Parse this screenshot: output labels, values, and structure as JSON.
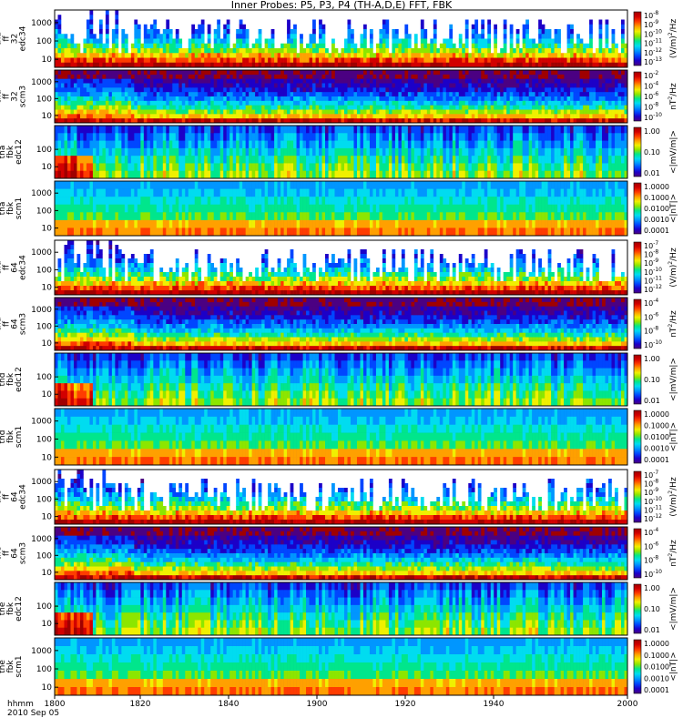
{
  "chart_data": {
    "type": "heatmap",
    "title": "Inner Probes: P5, P3, P4 (TH-A,D,E) FFT, FBK",
    "x_tick_labels": [
      "1800",
      "1820",
      "1840",
      "1900",
      "1920",
      "1940",
      "2000"
    ],
    "x_label_line1": "hhmm",
    "x_label_line2": "2010 Sep 05",
    "panels": [
      {
        "ylabel": [
          "tha",
          "ff",
          "32",
          "edc34"
        ],
        "yticks": [
          "1000",
          "100",
          "10"
        ],
        "cb_ticks": [
          "10^-8",
          "10^-9",
          "10^-10",
          "10^-11",
          "10^-12",
          "10^-13"
        ],
        "cb_label": "(V/m)^2/Hz",
        "product": "edc"
      },
      {
        "ylabel": [
          "tha",
          "ff",
          "32",
          "scm3"
        ],
        "yticks": [
          "1000",
          "100",
          "10"
        ],
        "cb_ticks": [
          "10^-2",
          "10^-4",
          "10^-6",
          "10^-8",
          "10^-10"
        ],
        "cb_label": "nT^2/Hz",
        "product": "scm"
      },
      {
        "ylabel": [
          "tha",
          "fbk",
          "edc12"
        ],
        "yticks": [
          "100",
          "10"
        ],
        "cb_ticks": [
          "1.00",
          "0.10",
          "0.01"
        ],
        "cb_label": "<|mV/m|>",
        "product": "fbke"
      },
      {
        "ylabel": [
          "tha",
          "fbk",
          "scm1"
        ],
        "yticks": [
          "1000",
          "100",
          "10"
        ],
        "cb_ticks": [
          "1.0000",
          "0.1000",
          "0.0100",
          "0.0010",
          "0.0001"
        ],
        "cb_label": "<|nT|>",
        "product": "fbkb"
      },
      {
        "ylabel": [
          "thd",
          "ff",
          "64",
          "edc34"
        ],
        "yticks": [
          "1000",
          "100",
          "10"
        ],
        "cb_ticks": [
          "10^-7",
          "10^-8",
          "10^-9",
          "10^-10",
          "10^-11",
          "10^-12"
        ],
        "cb_label": "(V/m)^2/Hz",
        "product": "edc"
      },
      {
        "ylabel": [
          "thd",
          "ff",
          "64",
          "scm3"
        ],
        "yticks": [
          "1000",
          "100",
          "10"
        ],
        "cb_ticks": [
          "10^-4",
          "10^-6",
          "10^-8",
          "10^-10"
        ],
        "cb_label": "nT^2/Hz",
        "product": "scm"
      },
      {
        "ylabel": [
          "thd",
          "fbk",
          "edc12"
        ],
        "yticks": [
          "100",
          "10"
        ],
        "cb_ticks": [
          "1.00",
          "0.10",
          "0.01"
        ],
        "cb_label": "<|mV/m|>",
        "product": "fbke"
      },
      {
        "ylabel": [
          "thd",
          "fbk",
          "scm1"
        ],
        "yticks": [
          "1000",
          "100",
          "10"
        ],
        "cb_ticks": [
          "1.0000",
          "0.1000",
          "0.0100",
          "0.0010",
          "0.0001"
        ],
        "cb_label": "<|nT|>",
        "product": "fbkb"
      },
      {
        "ylabel": [
          "the",
          "ff",
          "64",
          "edc34"
        ],
        "yticks": [
          "1000",
          "100",
          "10"
        ],
        "cb_ticks": [
          "10^-7",
          "10^-8",
          "10^-9",
          "10^-10",
          "10^-11",
          "10^-12"
        ],
        "cb_label": "(V/m)^2/Hz",
        "product": "edc"
      },
      {
        "ylabel": [
          "the",
          "ff",
          "64",
          "scm3"
        ],
        "yticks": [
          "1000",
          "100",
          "10"
        ],
        "cb_ticks": [
          "10^-4",
          "10^-6",
          "10^-8",
          "10^-10"
        ],
        "cb_label": "nT^2/Hz",
        "product": "scm"
      },
      {
        "ylabel": [
          "the",
          "fbk",
          "edc12"
        ],
        "yticks": [
          "100",
          "10"
        ],
        "cb_ticks": [
          "1.00",
          "0.10",
          "0.01"
        ],
        "cb_label": "<|mV/m|>",
        "product": "fbke"
      },
      {
        "ylabel": [
          "the",
          "fbk",
          "scm1"
        ],
        "yticks": [
          "1000",
          "100",
          "10"
        ],
        "cb_ticks": [
          "1.0000",
          "0.1000",
          "0.0100",
          "0.0010",
          "0.0001"
        ],
        "cb_label": "<|nT|>",
        "product": "fbkb"
      }
    ],
    "colorscale": [
      "#4b0082",
      "#1c00c8",
      "#0046ff",
      "#0096ff",
      "#00dcf0",
      "#00e68c",
      "#8ce600",
      "#f0f000",
      "#ffa000",
      "#ff3c00",
      "#d20000",
      "#a00000"
    ],
    "grid": false
  }
}
